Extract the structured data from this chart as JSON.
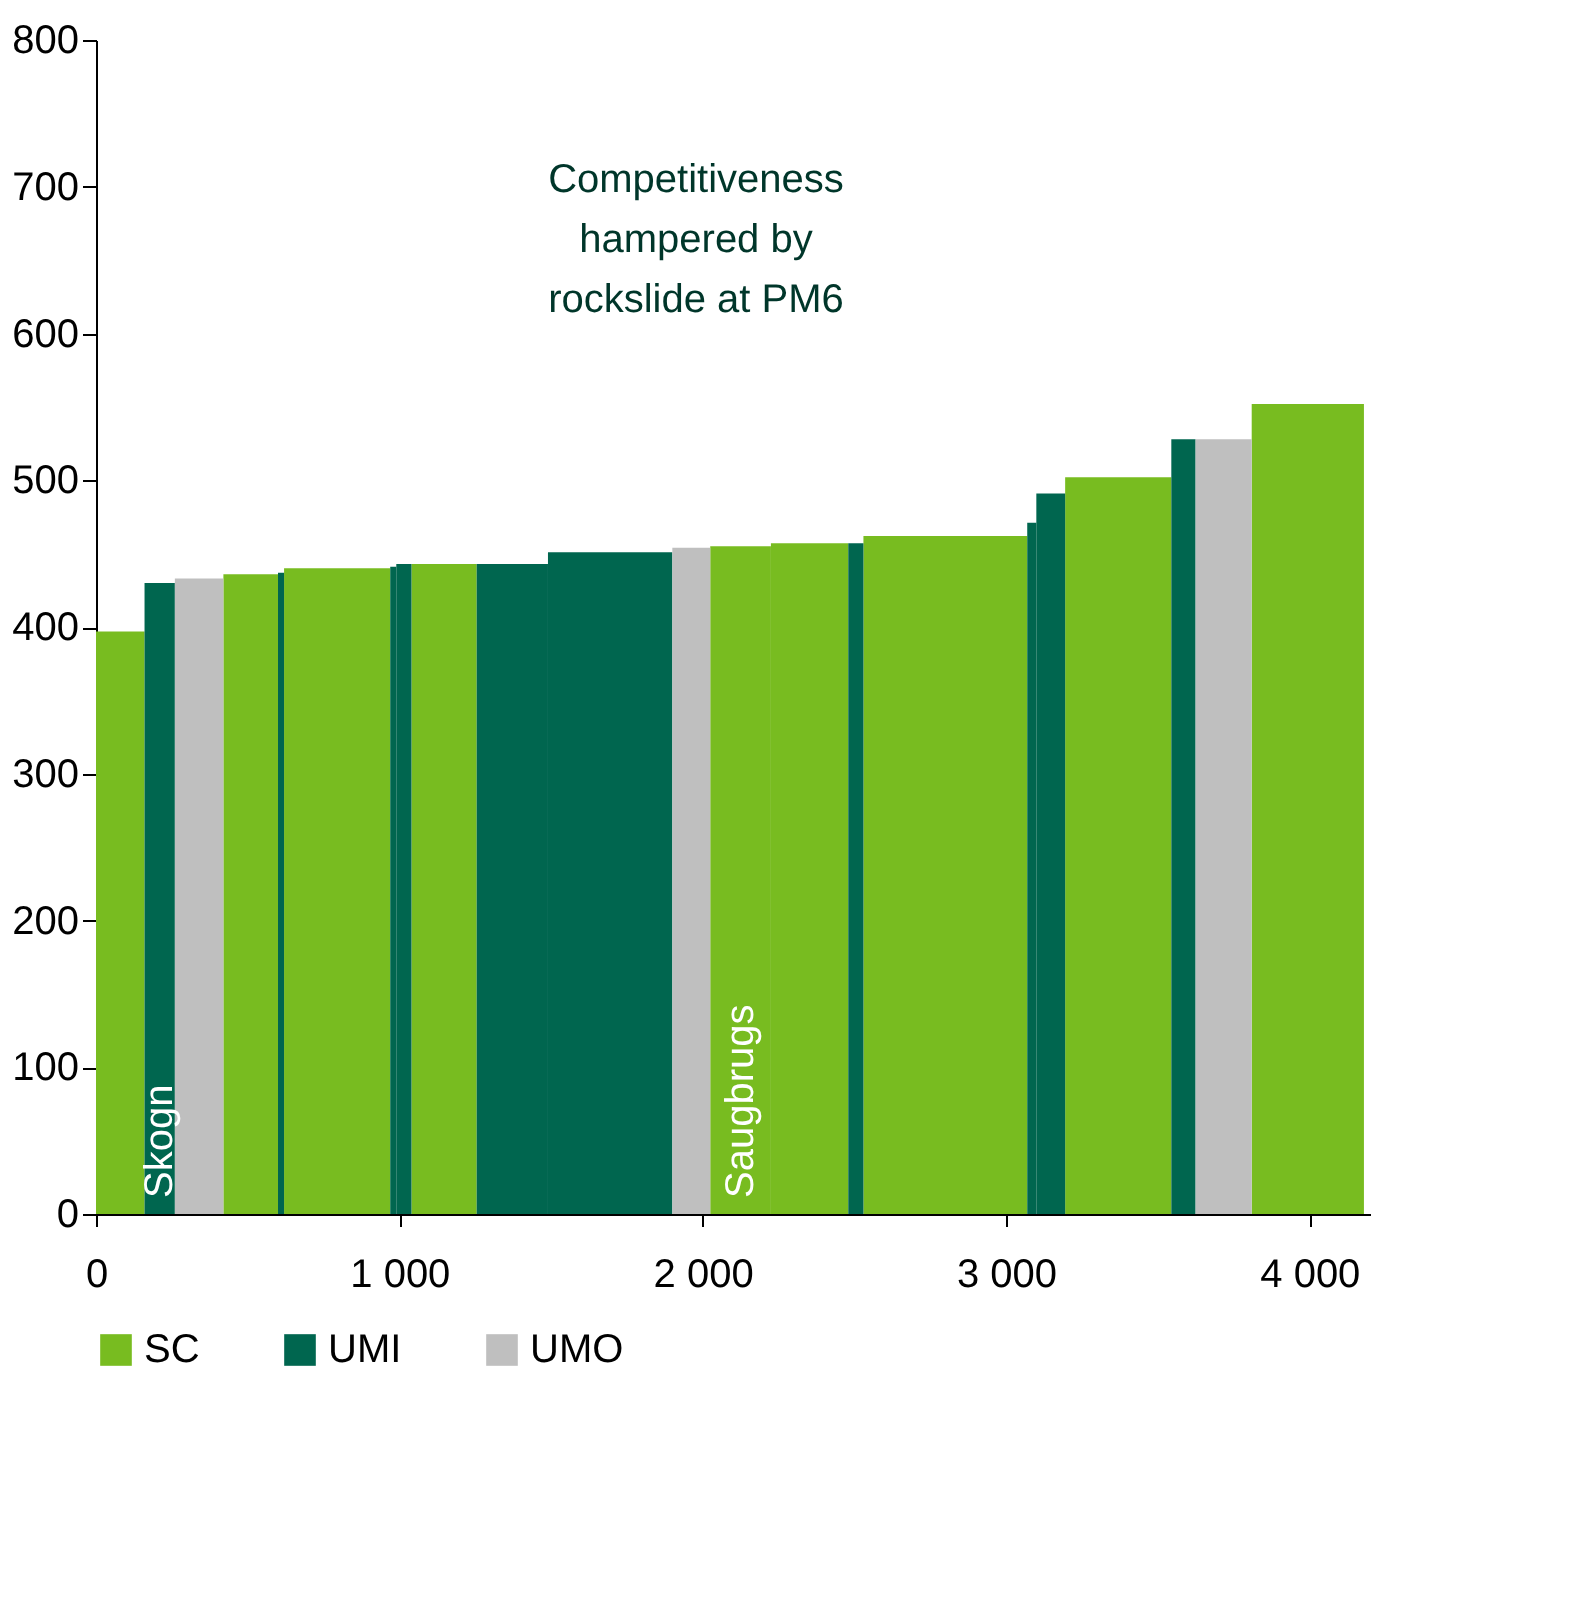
{
  "chart_data": {
    "type": "histogram",
    "bins": [
      0,
      160,
      260,
      420,
      600,
      620,
      970,
      990,
      1040,
      1255,
      1490,
      1900,
      2025,
      2225,
      2480,
      2530,
      3070,
      3100,
      3195,
      3545,
      3625,
      3810,
      4180
    ],
    "series": [
      {
        "name": "SC",
        "color": "#78bc20",
        "values": [
          397,
          null,
          null,
          436,
          null,
          440,
          null,
          null,
          443,
          null,
          null,
          null,
          455,
          457,
          null,
          462,
          null,
          null,
          502,
          null,
          null,
          552
        ]
      },
      {
        "name": "UMI",
        "color": "#00664f",
        "values": [
          null,
          430,
          null,
          null,
          437,
          null,
          441,
          443,
          null,
          443,
          451,
          null,
          null,
          null,
          457,
          null,
          471,
          491,
          null,
          528,
          null,
          null
        ]
      },
      {
        "name": "UMO",
        "color": "#bfbfbf",
        "values": [
          null,
          null,
          433,
          null,
          null,
          null,
          null,
          null,
          null,
          null,
          null,
          454,
          null,
          null,
          null,
          null,
          null,
          null,
          null,
          null,
          528,
          null
        ]
      }
    ],
    "xlim": [
      0,
      4200
    ],
    "xticks": [
      0,
      {
        "value": 1000,
        "label": "1 000"
      },
      {
        "value": 2000,
        "label": "2 000"
      },
      {
        "value": 3000,
        "label": "3 000"
      },
      {
        "value": 4000,
        "label": "4 000"
      }
    ],
    "ylim": [
      0,
      800
    ],
    "yticks": [
      0,
      100,
      200,
      300,
      400,
      500,
      600,
      700,
      800
    ],
    "annotations": [
      {
        "text": "Skogn",
        "x": 210,
        "y": 0
      },
      {
        "text": "Saugbrugs",
        "x": 2125,
        "y": 0
      },
      "Competitiveness\nhampered by\nrockslide at PM6"
    ],
    "legend": "bottom",
    "grid": false
  }
}
